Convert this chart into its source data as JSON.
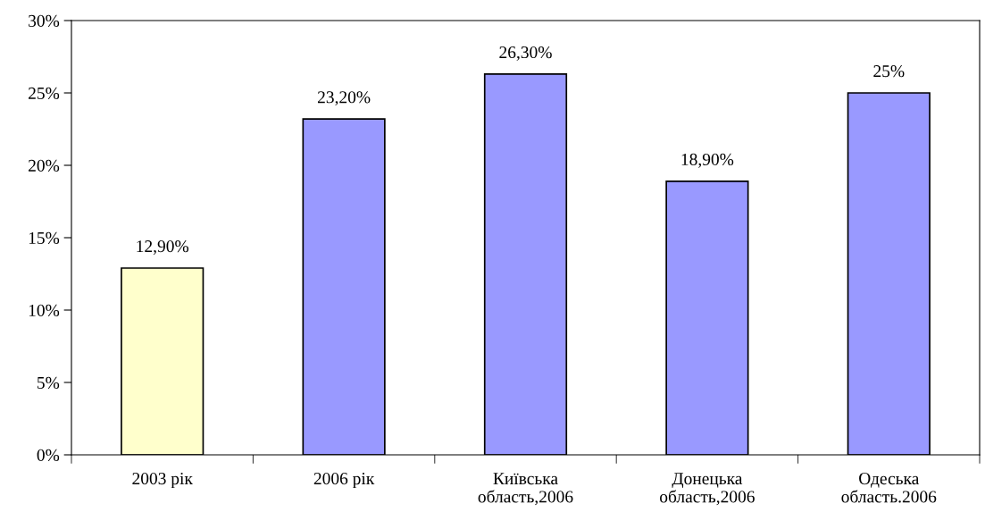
{
  "chart_data": {
    "type": "bar",
    "categories": [
      "2003 рік",
      "2006 рік",
      "Київська\nобласть,2006",
      "Донецька\nобласть,2006",
      "Одеська\nобласть.2006"
    ],
    "values": [
      12.9,
      23.2,
      26.3,
      18.9,
      25
    ],
    "colors": [
      "#ffffcc",
      "#9999ff",
      "#9999ff",
      "#9999ff",
      "#9999ff"
    ],
    "value_labels": [
      "12,90%",
      "23,20%",
      "26,30%",
      "18,90%",
      "25%"
    ],
    "ylim": [
      0,
      30
    ],
    "yticks": [
      {
        "value": 0,
        "label": "0%"
      },
      {
        "value": 5,
        "label": "5%"
      },
      {
        "value": 10,
        "label": "10%"
      },
      {
        "value": 15,
        "label": "15%"
      },
      {
        "value": 20,
        "label": "20%"
      },
      {
        "value": 25,
        "label": "25%"
      },
      {
        "value": 30,
        "label": "30%"
      }
    ],
    "grid": false,
    "legend": false
  }
}
